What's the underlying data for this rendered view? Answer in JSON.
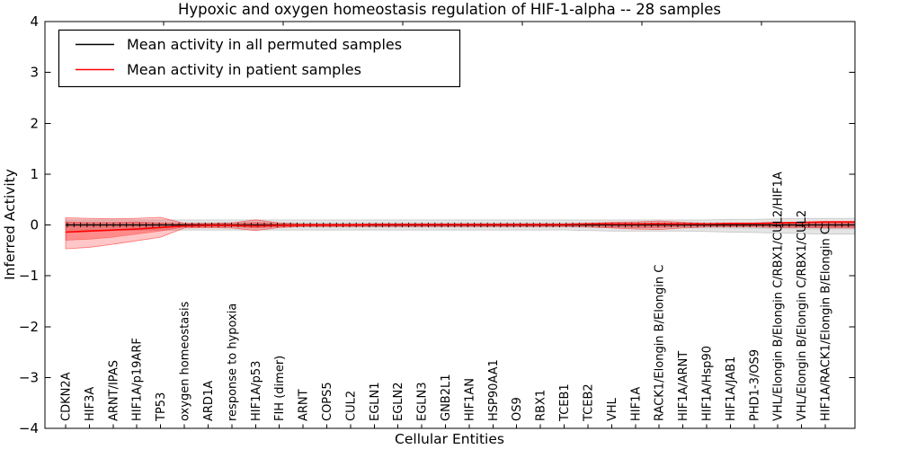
{
  "legend": {
    "items": [
      {
        "label": "Mean activity in all permuted samples",
        "color": "#000000"
      },
      {
        "label": "Mean activity in patient samples",
        "color": "#ff0000"
      }
    ]
  },
  "chart_data": {
    "type": "line",
    "title": "Hypoxic and oxygen homeostasis regulation of HIF-1-alpha -- 28 samples",
    "xlabel": "Cellular Entities",
    "ylabel": "Inferred Activity",
    "ylim": [
      -4,
      4
    ],
    "yticks": [
      -4,
      -3,
      -2,
      -1,
      0,
      1,
      2,
      3,
      4
    ],
    "ytick_labels": [
      "−4",
      "−3",
      "−2",
      "−1",
      "0",
      "1",
      "2",
      "3",
      "4"
    ],
    "grid": false,
    "legend_position": "upper left",
    "categories": [
      "CDKN2A",
      "HIF3A",
      "ARNT/IPAS",
      "HIF1A/p19ARF",
      "TP53",
      "oxygen homeostasis",
      "ARD1A",
      "response to hypoxia",
      "HIF1A/p53",
      "FIH (dimer)",
      "ARNT",
      "COPS5",
      "CUL2",
      "EGLN1",
      "EGLN2",
      "EGLN3",
      "GNB2L1",
      "HIF1AN",
      "HSP90AA1",
      "OS9",
      "RBX1",
      "TCEB1",
      "TCEB2",
      "VHL",
      "HIF1A",
      "RACK1/Elongin B/Elongin C",
      "HIF1A/ARNT",
      "HIF1A/Hsp90",
      "HIF1A/JAB1",
      "PHD1-3/OS9",
      "VHL/Elongin B/Elongin C/RBX1/CUL2/HIF1A",
      "VHL/Elongin B/Elongin C/RBX1/CUL2",
      "HIF1A/RACK1/Elongin B/Elongin C"
    ],
    "series": [
      {
        "name": "Mean activity in all permuted samples",
        "color": "#000000",
        "values": [
          0,
          0,
          0,
          0,
          0,
          0,
          0,
          0,
          0,
          0,
          0,
          0,
          0,
          0,
          0,
          0,
          0,
          0,
          0,
          0,
          0,
          0,
          0,
          0,
          0,
          0,
          0,
          0,
          0,
          0,
          0,
          0,
          0
        ],
        "band_outer_hi": [
          0.1,
          0.1,
          0.1,
          0.1,
          0.1,
          0.1,
          0.1,
          0.1,
          0.1,
          0.1,
          0.1,
          0.1,
          0.1,
          0.1,
          0.1,
          0.1,
          0.1,
          0.1,
          0.1,
          0.1,
          0.1,
          0.1,
          0.1,
          0.1,
          0.1,
          0.1,
          0.1,
          0.1,
          0.11,
          0.11,
          0.12,
          0.13,
          0.13
        ],
        "band_outer_lo": [
          -0.1,
          -0.1,
          -0.1,
          -0.1,
          -0.1,
          -0.1,
          -0.1,
          -0.1,
          -0.1,
          -0.1,
          -0.1,
          -0.1,
          -0.1,
          -0.1,
          -0.1,
          -0.1,
          -0.1,
          -0.1,
          -0.1,
          -0.1,
          -0.1,
          -0.1,
          -0.11,
          -0.12,
          -0.12,
          -0.12,
          -0.12,
          -0.13,
          -0.14,
          -0.15,
          -0.16,
          -0.17,
          -0.18
        ],
        "band_inner_hi": [
          0.05,
          0.05,
          0.05,
          0.05,
          0.05,
          0.05,
          0.05,
          0.05,
          0.05,
          0.05,
          0.05,
          0.05,
          0.05,
          0.05,
          0.05,
          0.05,
          0.05,
          0.05,
          0.05,
          0.05,
          0.05,
          0.05,
          0.05,
          0.05,
          0.05,
          0.05,
          0.05,
          0.05,
          0.05,
          0.05,
          0.06,
          0.06,
          0.06
        ],
        "band_inner_lo": [
          -0.05,
          -0.05,
          -0.05,
          -0.05,
          -0.05,
          -0.05,
          -0.05,
          -0.05,
          -0.05,
          -0.05,
          -0.05,
          -0.05,
          -0.05,
          -0.05,
          -0.05,
          -0.05,
          -0.05,
          -0.05,
          -0.05,
          -0.05,
          -0.05,
          -0.05,
          -0.06,
          -0.06,
          -0.06,
          -0.06,
          -0.06,
          -0.07,
          -0.07,
          -0.08,
          -0.08,
          -0.09,
          -0.09
        ]
      },
      {
        "name": "Mean activity in patient samples",
        "color": "#ff0000",
        "values": [
          -0.14,
          -0.12,
          -0.1,
          -0.08,
          -0.05,
          -0.02,
          -0.01,
          -0.01,
          -0.02,
          -0.01,
          0.0,
          0.0,
          0.0,
          0.01,
          0.01,
          0.01,
          0.01,
          0.01,
          0.01,
          0.01,
          0.01,
          0.01,
          0.02,
          0.02,
          0.02,
          0.02,
          0.02,
          0.02,
          0.03,
          0.03,
          0.04,
          0.05,
          0.06
        ],
        "band_outer_hi": [
          0.14,
          0.13,
          0.12,
          0.13,
          0.15,
          0.03,
          0.03,
          0.04,
          0.1,
          0.04,
          0.02,
          0.02,
          0.02,
          0.02,
          0.02,
          0.02,
          0.02,
          0.02,
          0.02,
          0.02,
          0.02,
          0.02,
          0.03,
          0.05,
          0.06,
          0.08,
          0.05,
          0.03,
          0.03,
          0.03,
          0.05,
          0.05,
          0.06
        ],
        "band_outer_lo": [
          -0.47,
          -0.44,
          -0.38,
          -0.31,
          -0.24,
          -0.06,
          -0.05,
          -0.06,
          -0.11,
          -0.05,
          -0.03,
          -0.03,
          -0.03,
          -0.03,
          -0.03,
          -0.03,
          -0.03,
          -0.03,
          -0.03,
          -0.03,
          -0.03,
          -0.03,
          -0.04,
          -0.06,
          -0.08,
          -0.09,
          -0.06,
          -0.04,
          -0.04,
          -0.04,
          -0.05,
          -0.05,
          -0.06
        ],
        "band_inner_hi": [
          0.06,
          0.05,
          0.05,
          0.06,
          0.04,
          0.02,
          0.02,
          0.02,
          0.05,
          0.02,
          0.01,
          0.01,
          0.01,
          0.01,
          0.01,
          0.01,
          0.01,
          0.01,
          0.01,
          0.01,
          0.01,
          0.01,
          0.02,
          0.03,
          0.03,
          0.04,
          0.03,
          0.02,
          0.02,
          0.02,
          0.03,
          0.03,
          0.04
        ],
        "band_inner_lo": [
          -0.3,
          -0.28,
          -0.24,
          -0.18,
          -0.12,
          -0.04,
          -0.03,
          -0.03,
          -0.06,
          -0.03,
          -0.02,
          -0.02,
          -0.02,
          -0.02,
          -0.02,
          -0.02,
          -0.02,
          -0.02,
          -0.02,
          -0.02,
          -0.02,
          -0.02,
          -0.02,
          -0.04,
          -0.05,
          -0.05,
          -0.03,
          -0.02,
          -0.02,
          -0.02,
          -0.03,
          -0.03,
          -0.04
        ]
      }
    ]
  }
}
